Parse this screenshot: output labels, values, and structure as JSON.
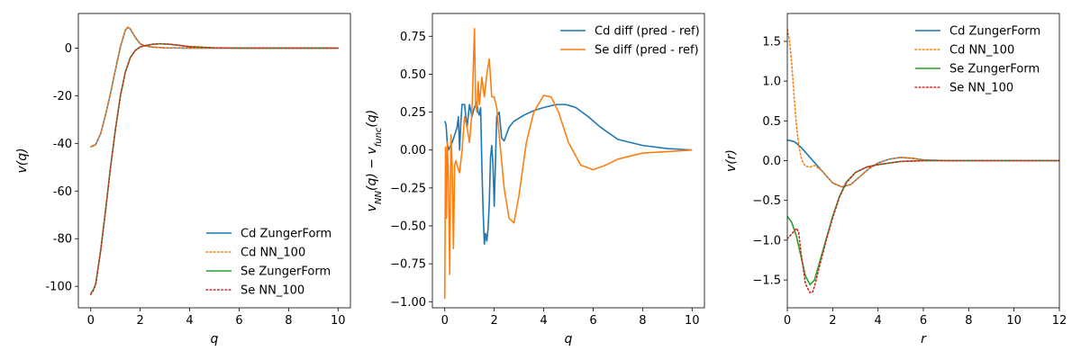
{
  "chart_data": [
    {
      "type": "line",
      "xlabel": "q",
      "ylabel": "v(q)",
      "xlim": [
        -0.5,
        10.5
      ],
      "ylim": [
        -109,
        14.5
      ],
      "xticks": [
        0,
        2,
        4,
        6,
        8,
        10
      ],
      "yticks": [
        -100,
        -80,
        -60,
        -40,
        -20,
        0
      ],
      "legend_position": "lower-right",
      "series": [
        {
          "name": "Cd ZungerForm",
          "style": "solid",
          "color": "#1f77b4",
          "x": [
            0,
            0.2,
            0.4,
            0.6,
            0.8,
            1.0,
            1.2,
            1.4,
            1.5,
            1.6,
            1.8,
            2.0,
            2.2,
            2.5,
            3.0,
            4.0,
            6.0,
            8.0,
            10.0
          ],
          "y": [
            -41.5,
            -40.5,
            -36,
            -28,
            -19,
            -9,
            0.5,
            7.5,
            8.7,
            8.0,
            4.5,
            1.8,
            0.9,
            0.4,
            0.1,
            0.0,
            0.0,
            0.0,
            0.0
          ]
        },
        {
          "name": "Cd NN_100",
          "style": "dotted",
          "color": "#ff7f0e",
          "x": [
            0,
            0.2,
            0.4,
            0.6,
            0.8,
            1.0,
            1.2,
            1.4,
            1.5,
            1.6,
            1.8,
            2.0,
            2.2,
            2.5,
            3.0,
            4.0,
            6.0,
            8.0,
            10.0
          ],
          "y": [
            -41.4,
            -40.4,
            -36,
            -28,
            -19,
            -9,
            0.6,
            7.6,
            8.8,
            8.1,
            4.6,
            1.9,
            0.9,
            0.4,
            0.1,
            0.0,
            0.0,
            0.0,
            0.0
          ]
        },
        {
          "name": "Se ZungerForm",
          "style": "solid",
          "color": "#2ca02c",
          "x": [
            0,
            0.1,
            0.2,
            0.4,
            0.6,
            0.8,
            1.0,
            1.2,
            1.4,
            1.6,
            1.8,
            2.0,
            2.2,
            2.5,
            2.8,
            3.2,
            3.6,
            4.0,
            5.0,
            6.0,
            8.0,
            10.0
          ],
          "y": [
            -103,
            -101.5,
            -99,
            -85,
            -68,
            -50,
            -34,
            -20,
            -10,
            -4,
            -1,
            0.5,
            1.0,
            1.6,
            1.8,
            1.6,
            1.1,
            0.6,
            0.1,
            0.0,
            0.0,
            0.0
          ]
        },
        {
          "name": "Se NN_100",
          "style": "dotted",
          "color": "#d62728",
          "x": [
            0,
            0.1,
            0.2,
            0.4,
            0.6,
            0.8,
            1.0,
            1.2,
            1.4,
            1.6,
            1.8,
            2.0,
            2.2,
            2.5,
            2.8,
            3.2,
            3.6,
            4.0,
            5.0,
            6.0,
            8.0,
            10.0
          ],
          "y": [
            -103.4,
            -101.8,
            -99.2,
            -85.3,
            -68.2,
            -50.1,
            -34.1,
            -20.1,
            -10.1,
            -4.0,
            -1.0,
            0.5,
            1.0,
            1.6,
            1.8,
            1.6,
            1.1,
            0.6,
            0.1,
            0.0,
            0.0,
            0.0
          ]
        }
      ]
    },
    {
      "type": "line",
      "xlabel": "q",
      "ylabel": "v_NN(q) − v_func(q)",
      "xlim": [
        -0.5,
        10.5
      ],
      "ylim": [
        -1.04,
        0.9
      ],
      "xticks": [
        0,
        2,
        4,
        6,
        8,
        10
      ],
      "yticks": [
        -1.0,
        -0.75,
        -0.5,
        -0.25,
        0.0,
        0.25,
        0.5,
        0.75
      ],
      "legend_position": "upper-right",
      "series": [
        {
          "name": "Cd diff (pred - ref)",
          "style": "solid",
          "color": "#1f77b4",
          "x": [
            0,
            0.05,
            0.1,
            0.15,
            0.2,
            0.3,
            0.4,
            0.5,
            0.55,
            0.6,
            0.65,
            0.7,
            0.8,
            0.9,
            1.0,
            1.1,
            1.2,
            1.3,
            1.35,
            1.4,
            1.45,
            1.5,
            1.55,
            1.6,
            1.65,
            1.7,
            1.75,
            1.8,
            1.85,
            1.9,
            1.95,
            2.0,
            2.1,
            2.2,
            2.3,
            2.4,
            2.6,
            2.8,
            3.2,
            3.6,
            4.0,
            4.5,
            4.9,
            5.3,
            5.8,
            6.3,
            7.0,
            8.0,
            9.0,
            10.0
          ],
          "y": [
            0.19,
            0.17,
            0.05,
            0.0,
            0.02,
            0.05,
            0.1,
            0.15,
            0.22,
            0.0,
            0.18,
            0.3,
            0.3,
            0.15,
            0.3,
            0.22,
            0.28,
            0.32,
            0.25,
            0.23,
            0.28,
            -0.1,
            -0.4,
            -0.62,
            -0.55,
            -0.6,
            -0.52,
            -0.35,
            -0.05,
            0.03,
            -0.1,
            -0.37,
            0.22,
            0.25,
            0.08,
            0.06,
            0.15,
            0.19,
            0.23,
            0.26,
            0.28,
            0.3,
            0.3,
            0.28,
            0.22,
            0.15,
            0.07,
            0.03,
            0.01,
            0.0
          ]
        },
        {
          "name": "Se diff (pred - ref)",
          "style": "solid",
          "color": "#ff7f0e",
          "x": [
            0,
            0.03,
            0.07,
            0.1,
            0.15,
            0.2,
            0.25,
            0.3,
            0.35,
            0.4,
            0.45,
            0.5,
            0.6,
            0.7,
            0.8,
            0.9,
            1.0,
            1.1,
            1.2,
            1.25,
            1.3,
            1.35,
            1.4,
            1.5,
            1.6,
            1.7,
            1.8,
            1.9,
            2.0,
            2.1,
            2.2,
            2.4,
            2.6,
            2.8,
            3.0,
            3.3,
            3.6,
            4.0,
            4.3,
            4.6,
            5.0,
            5.5,
            6.0,
            6.5,
            7.0,
            8.0,
            9.0,
            10.0
          ],
          "y": [
            -0.98,
            0.02,
            -0.45,
            0.05,
            -0.2,
            -0.82,
            0.1,
            -0.1,
            -0.65,
            -0.1,
            -0.07,
            -0.1,
            -0.15,
            0.0,
            0.22,
            0.15,
            0.05,
            0.25,
            0.8,
            0.3,
            0.25,
            0.45,
            0.3,
            0.48,
            0.35,
            0.5,
            0.6,
            0.35,
            0.35,
            0.28,
            0.1,
            -0.25,
            -0.45,
            -0.48,
            -0.3,
            0.05,
            0.25,
            0.36,
            0.35,
            0.25,
            0.05,
            -0.1,
            -0.13,
            -0.1,
            -0.06,
            -0.02,
            -0.01,
            0.0
          ]
        }
      ]
    },
    {
      "type": "line",
      "xlabel": "r",
      "ylabel": "v(r)",
      "xlim": [
        0,
        12
      ],
      "ylim": [
        -1.85,
        1.85
      ],
      "xticks": [
        0,
        2,
        4,
        6,
        8,
        10,
        12
      ],
      "yticks": [
        -1.5,
        -1.0,
        -0.5,
        0.0,
        0.5,
        1.0,
        1.5
      ],
      "legend_position": "upper-right",
      "series": [
        {
          "name": "Cd ZungerForm",
          "style": "solid",
          "color": "#1f77b4",
          "x": [
            0,
            0.3,
            0.6,
            1.0,
            1.5,
            2.0,
            2.4,
            2.8,
            3.2,
            3.6,
            4.0,
            4.5,
            5.0,
            5.5,
            6.0,
            7.0,
            8.0,
            10.0,
            12.0
          ],
          "y": [
            0.26,
            0.24,
            0.17,
            0.04,
            -0.12,
            -0.28,
            -0.33,
            -0.3,
            -0.2,
            -0.1,
            -0.03,
            0.02,
            0.04,
            0.03,
            0.01,
            0.0,
            0.0,
            0.0,
            0.0
          ]
        },
        {
          "name": "Cd NN_100",
          "style": "dotted",
          "color": "#ff7f0e",
          "x": [
            0,
            0.1,
            0.2,
            0.3,
            0.4,
            0.5,
            0.6,
            0.7,
            0.8,
            1.0,
            1.2,
            1.5,
            2.0,
            2.4,
            2.8,
            3.2,
            3.6,
            4.0,
            4.5,
            5.0,
            5.5,
            6.0,
            7.0,
            8.0,
            10.0,
            12.0
          ],
          "y": [
            1.65,
            1.5,
            1.2,
            0.8,
            0.45,
            0.2,
            0.05,
            -0.03,
            -0.07,
            -0.08,
            -0.06,
            -0.12,
            -0.28,
            -0.33,
            -0.3,
            -0.2,
            -0.1,
            -0.03,
            0.02,
            0.04,
            0.03,
            0.01,
            0.0,
            0.0,
            0.0,
            0.0
          ]
        },
        {
          "name": "Se ZungerForm",
          "style": "solid",
          "color": "#2ca02c",
          "x": [
            0,
            0.2,
            0.4,
            0.6,
            0.8,
            1.0,
            1.2,
            1.4,
            1.7,
            2.0,
            2.3,
            2.6,
            3.0,
            3.5,
            4.0,
            5.0,
            6.0,
            8.0,
            10.0,
            12.0
          ],
          "y": [
            -0.7,
            -0.78,
            -0.95,
            -1.2,
            -1.45,
            -1.56,
            -1.5,
            -1.3,
            -1.0,
            -0.7,
            -0.45,
            -0.27,
            -0.15,
            -0.08,
            -0.05,
            -0.01,
            0.0,
            0.0,
            0.0,
            0.0
          ]
        },
        {
          "name": "Se NN_100",
          "style": "dotted",
          "color": "#d62728",
          "x": [
            0,
            0.2,
            0.4,
            0.5,
            0.6,
            0.8,
            1.0,
            1.1,
            1.2,
            1.4,
            1.7,
            2.0,
            2.3,
            2.6,
            3.0,
            3.5,
            4.0,
            5.0,
            6.0,
            8.0,
            10.0,
            12.0
          ],
          "y": [
            -0.98,
            -0.92,
            -0.85,
            -0.9,
            -1.15,
            -1.55,
            -1.66,
            -1.66,
            -1.58,
            -1.35,
            -1.02,
            -0.72,
            -0.46,
            -0.28,
            -0.15,
            -0.08,
            -0.05,
            -0.01,
            0.0,
            0.0,
            0.0,
            0.0
          ]
        }
      ]
    }
  ]
}
